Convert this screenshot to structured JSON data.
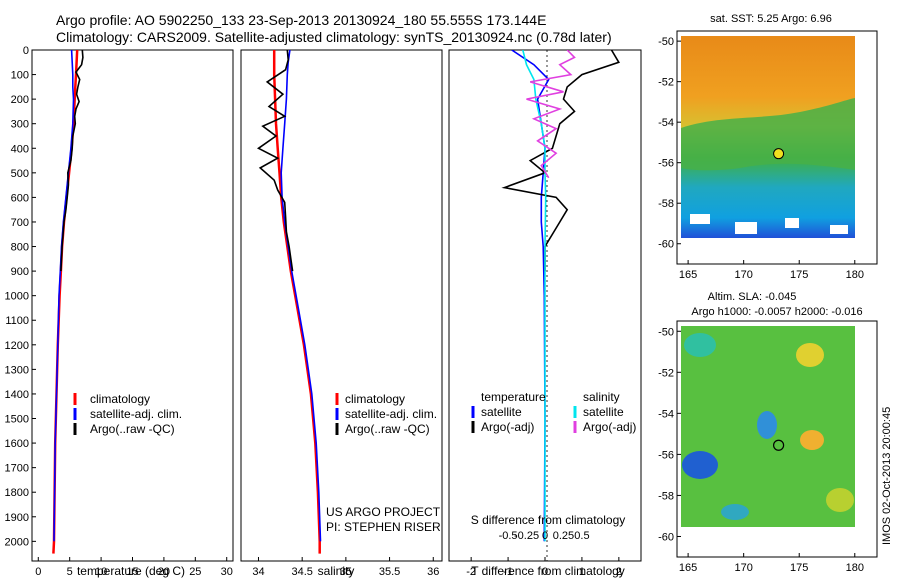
{
  "titles": {
    "line1": "Argo profile: AO 5902250_133 23-Sep-2013 20130924_180 55.555S 173.144E",
    "line2": "Climatology: CARS2009. Satellite-adjusted climatology: synTS_20130924.nc (0.78d later)"
  },
  "colors": {
    "climatology": "#ff0000",
    "satellite": "#0000ff",
    "argo": "#000000",
    "sat_salinity": "#00e5ee",
    "argo_salinity": "#e040e0"
  },
  "footer": {
    "project": "US ARGO PROJECT",
    "pi": "PI: STEPHEN RISER",
    "timestamp": "IMOS 02-Oct-2013 20:00:45"
  },
  "chart_data": [
    {
      "type": "line",
      "id": "temperature",
      "xlabel": "temperature (deg C)",
      "ylabel": "",
      "xlim": [
        -1,
        31
      ],
      "ylim": [
        2080,
        0
      ],
      "xticks": [
        0,
        5,
        10,
        15,
        20,
        25,
        30
      ],
      "yticks": [
        0,
        100,
        200,
        300,
        400,
        500,
        600,
        700,
        800,
        900,
        1000,
        1100,
        1200,
        1300,
        1400,
        1500,
        1600,
        1700,
        1800,
        1900,
        2000
      ],
      "legend": [
        "climatology",
        "satellite-adj. clim.",
        "Argo(..raw -QC)"
      ],
      "series": [
        {
          "name": "climatology",
          "color": "#ff0000",
          "depth": [
            0,
            50,
            100,
            150,
            200,
            300,
            400,
            500,
            600,
            700,
            800,
            900,
            1000,
            1200,
            1400,
            1600,
            1800,
            2000,
            2050
          ],
          "values": [
            6.2,
            6.1,
            6.0,
            5.9,
            5.8,
            5.6,
            5.3,
            4.9,
            4.5,
            4.1,
            3.8,
            3.6,
            3.4,
            3.1,
            2.9,
            2.7,
            2.6,
            2.5,
            2.4
          ]
        },
        {
          "name": "satellite-adj. clim.",
          "color": "#0000ff",
          "depth": [
            0,
            50,
            100,
            150,
            200,
            300,
            400,
            500,
            600,
            700,
            800,
            900,
            1000,
            1200,
            1400,
            1600,
            1800,
            2000
          ],
          "values": [
            5.3,
            5.4,
            5.5,
            5.5,
            5.6,
            5.5,
            5.2,
            4.8,
            4.4,
            4.0,
            3.7,
            3.5,
            3.3,
            3.1,
            2.9,
            2.7,
            2.6,
            2.5
          ]
        },
        {
          "name": "Argo(..raw -QC)",
          "color": "#000000",
          "depth": [
            0,
            30,
            60,
            90,
            120,
            150,
            180,
            210,
            240,
            270,
            300,
            350,
            400,
            450,
            500,
            550,
            600,
            650,
            700,
            800,
            900
          ],
          "values": [
            7.0,
            7.1,
            6.9,
            6.0,
            6.6,
            6.3,
            6.1,
            6.5,
            6.0,
            5.8,
            5.9,
            5.5,
            5.4,
            5.2,
            4.7,
            4.8,
            4.6,
            4.4,
            4.1,
            3.8,
            3.6
          ]
        }
      ]
    },
    {
      "type": "line",
      "id": "salinity",
      "xlabel": "salinity",
      "xlim": [
        33.8,
        36.1
      ],
      "ylim": [
        2080,
        0
      ],
      "xticks": [
        34,
        34.5,
        35,
        35.5,
        36
      ],
      "legend": [
        "climatology",
        "satellite-adj. clim.",
        "Argo(..raw -QC)"
      ],
      "series": [
        {
          "name": "climatology",
          "color": "#ff0000",
          "depth": [
            0,
            100,
            200,
            300,
            400,
            500,
            600,
            700,
            800,
            900,
            1000,
            1200,
            1400,
            1600,
            1800,
            2000,
            2050
          ],
          "values": [
            34.18,
            34.18,
            34.19,
            34.2,
            34.22,
            34.24,
            34.26,
            34.29,
            34.33,
            34.37,
            34.42,
            34.52,
            34.6,
            34.65,
            34.68,
            34.7,
            34.7
          ]
        },
        {
          "name": "satellite-adj. clim.",
          "color": "#0000ff",
          "depth": [
            0,
            50,
            100,
            200,
            300,
            400,
            500,
            600,
            700,
            800,
            900,
            1000,
            1200,
            1400,
            1600,
            1800,
            2000
          ],
          "values": [
            34.36,
            34.34,
            34.33,
            34.32,
            34.3,
            34.28,
            34.26,
            34.27,
            34.3,
            34.34,
            34.38,
            34.43,
            34.53,
            34.61,
            34.66,
            34.69,
            34.71
          ]
        },
        {
          "name": "Argo(..raw -QC)",
          "color": "#000000",
          "depth": [
            0,
            40,
            80,
            130,
            180,
            230,
            270,
            310,
            350,
            400,
            440,
            480,
            530,
            570,
            620,
            680,
            740,
            800,
            900
          ],
          "values": [
            34.33,
            34.34,
            34.31,
            34.1,
            34.28,
            34.12,
            34.3,
            34.05,
            34.2,
            34.0,
            34.22,
            34.02,
            34.18,
            34.22,
            34.3,
            34.31,
            34.32,
            34.35,
            34.39
          ]
        }
      ]
    },
    {
      "type": "line",
      "id": "differences",
      "xlabel": "T difference from climatology",
      "xlabel_top": "S difference from climatology",
      "xlim": [
        -2.6,
        2.6
      ],
      "ylim": [
        2080,
        0
      ],
      "xticks": [
        -2,
        -1,
        0,
        1,
        2
      ],
      "xticks_salinity": [
        -0.5,
        -0.25,
        0,
        0.25,
        0.5
      ],
      "legend_titles": [
        "temperature",
        "salinity"
      ],
      "legend": [
        "satellite",
        "Argo(-adj)",
        "satellite",
        "Argo(-adj)"
      ],
      "series": [
        {
          "name": "temperature satellite",
          "color": "#0000ff",
          "depth": [
            0,
            60,
            120,
            200,
            300,
            400,
            500,
            600,
            700,
            800,
            1000,
            1500,
            2000
          ],
          "values": [
            -0.9,
            -0.3,
            0.1,
            -0.2,
            -0.1,
            0.0,
            -0.05,
            -0.1,
            -0.1,
            -0.05,
            -0.02,
            0.0,
            -0.02
          ]
        },
        {
          "name": "temperature Argo(-adj)",
          "color": "#000000",
          "depth": [
            0,
            50,
            100,
            150,
            200,
            250,
            300,
            400,
            450,
            500,
            560,
            600,
            650,
            700,
            800,
            900
          ],
          "values": [
            1.8,
            2.0,
            1.0,
            0.6,
            0.5,
            0.8,
            0.4,
            0.2,
            -0.4,
            0.0,
            -1.1,
            0.3,
            0.6,
            0.4,
            0.0,
            0.0
          ]
        },
        {
          "name": "salinity satellite",
          "color": "#00e5ee",
          "depth": [
            0,
            60,
            120,
            200,
            300,
            400,
            500,
            600,
            800,
            1000,
            1500,
            2000
          ],
          "values": [
            -0.6,
            -0.5,
            -0.3,
            -0.25,
            -0.1,
            0.0,
            0.0,
            0.02,
            0.0,
            0.0,
            0.0,
            0.0
          ]
        },
        {
          "name": "salinity Argo(-adj)",
          "color": "#e040e0",
          "depth": [
            0,
            30,
            60,
            100,
            130,
            170,
            200,
            240,
            280,
            320,
            370,
            420,
            470,
            520
          ],
          "values": [
            0.6,
            0.8,
            0.4,
            0.7,
            -0.4,
            0.5,
            -0.5,
            0.4,
            -0.3,
            0.3,
            -0.2,
            0.3,
            -0.1,
            0.1
          ]
        }
      ]
    },
    {
      "type": "heatmap",
      "id": "sst-map",
      "title": "sat. SST: 5.25 Argo: 6.96",
      "xlim": [
        164,
        182
      ],
      "ylim": [
        -61,
        -49.5
      ],
      "xticks": [
        165,
        170,
        175,
        180
      ],
      "yticks": [
        -50,
        -52,
        -54,
        -56,
        -58,
        -60
      ],
      "data_extent": {
        "lon": [
          165.5,
          180
        ],
        "lat": [
          -60,
          -50
        ]
      },
      "argo_position": {
        "lon": 173.144,
        "lat": -55.555
      }
    },
    {
      "type": "heatmap",
      "id": "sla-map",
      "title": "Altim. SLA: -0.045",
      "subtitle": "Argo h1000: -0.0057 h2000: -0.016",
      "xlim": [
        164,
        182
      ],
      "ylim": [
        -61,
        -49.5
      ],
      "xticks": [
        165,
        170,
        175,
        180
      ],
      "yticks": [
        -50,
        -52,
        -54,
        -56,
        -58,
        -60
      ],
      "data_extent": {
        "lon": [
          165.5,
          180
        ],
        "lat": [
          -60,
          -50
        ]
      },
      "argo_position": {
        "lon": 173.144,
        "lat": -55.555
      }
    }
  ]
}
